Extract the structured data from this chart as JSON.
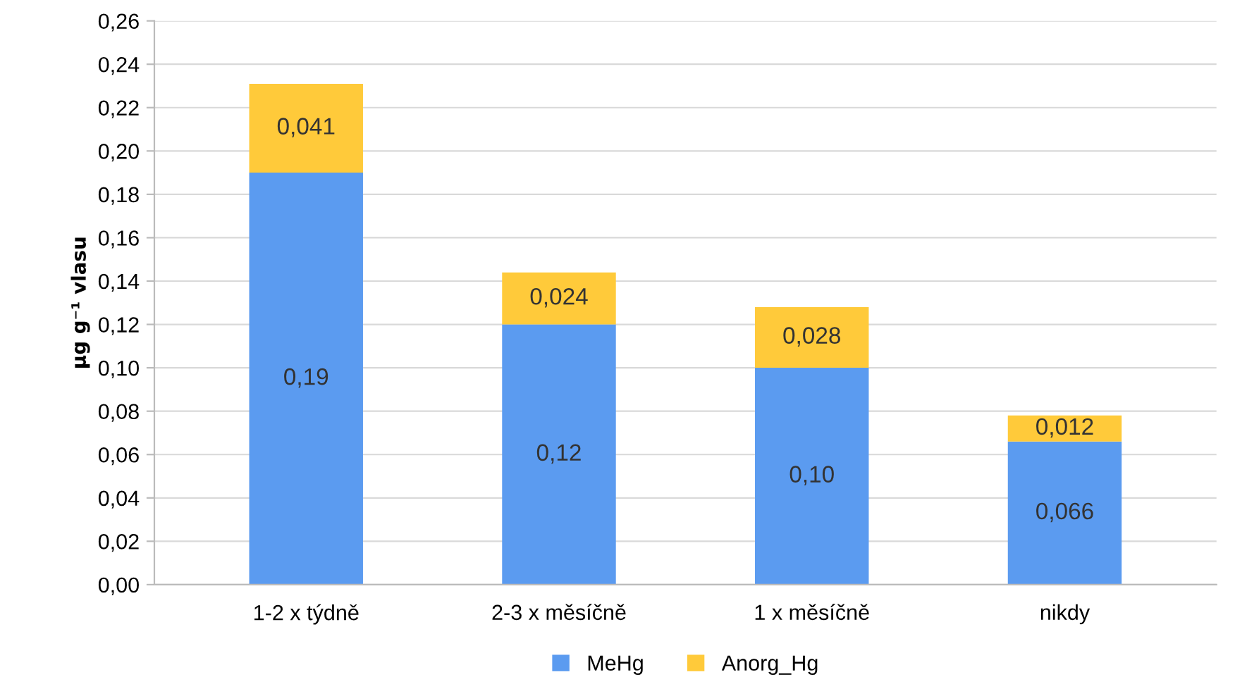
{
  "chart_data": {
    "type": "bar",
    "stacked": true,
    "ylabel": "µg g⁻¹ vlasu",
    "categories": [
      "1-2 x týdně",
      "2-3 x měsíčně",
      "1 x měsíčně",
      "nikdy"
    ],
    "series": [
      {
        "name": "MeHg",
        "color": "#5b9bf0",
        "values": [
          0.19,
          0.12,
          0.1,
          0.066
        ],
        "value_labels": [
          "0,19",
          "0,12",
          "0,10",
          "0,066"
        ]
      },
      {
        "name": "Anorg_Hg",
        "color": "#ffca3a",
        "values": [
          0.041,
          0.024,
          0.028,
          0.012
        ],
        "value_labels": [
          "0,041",
          "0,024",
          "0,028",
          "0,012"
        ]
      }
    ],
    "ylim": [
      0,
      0.26
    ],
    "yticks": [
      {
        "value": 0,
        "label": "0,00"
      },
      {
        "value": 0.02,
        "label": "0,02"
      },
      {
        "value": 0.04,
        "label": "0,04"
      },
      {
        "value": 0.06,
        "label": "0,06"
      },
      {
        "value": 0.08,
        "label": "0,08"
      },
      {
        "value": 0.1,
        "label": "0,10"
      },
      {
        "value": 0.12,
        "label": "0,12"
      },
      {
        "value": 0.14,
        "label": "0,14"
      },
      {
        "value": 0.16,
        "label": "0,16"
      },
      {
        "value": 0.18,
        "label": "0,18"
      },
      {
        "value": 0.2,
        "label": "0,20"
      },
      {
        "value": 0.22,
        "label": "0,22"
      },
      {
        "value": 0.24,
        "label": "0,24"
      },
      {
        "value": 0.26,
        "label": "0,26"
      }
    ],
    "grid": "y",
    "legend": "bottom"
  }
}
